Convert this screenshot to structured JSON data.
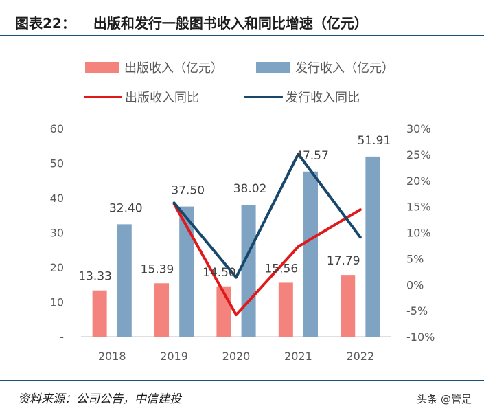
{
  "header": {
    "figure_no": "图表22：",
    "title": "出版和发行一般图书收入和同比增速（亿元）"
  },
  "chart_data": {
    "type": "bar",
    "categories": [
      "2018",
      "2019",
      "2020",
      "2021",
      "2022"
    ],
    "series": [
      {
        "name": "出版收入（亿元）",
        "kind": "bar",
        "axis": "left",
        "color": "#f4837d",
        "values": [
          13.33,
          15.39,
          14.5,
          15.56,
          17.79
        ],
        "labels": [
          "13.33",
          "15.39",
          "14.50",
          "15.56",
          "17.79"
        ]
      },
      {
        "name": "发行收入（亿元）",
        "kind": "bar",
        "axis": "left",
        "color": "#7fa3c3",
        "values": [
          32.4,
          37.5,
          38.02,
          47.57,
          51.91
        ],
        "labels": [
          "32.40",
          "37.50",
          "38.02",
          "47.57",
          "51.91"
        ]
      },
      {
        "name": "出版收入同比",
        "kind": "line",
        "axis": "right",
        "color": "#e0191b",
        "values": [
          null,
          15.5,
          -5.8,
          7.3,
          14.4
        ]
      },
      {
        "name": "发行收入同比",
        "kind": "line",
        "axis": "right",
        "color": "#17476b",
        "values": [
          null,
          15.7,
          1.4,
          25.1,
          9.1
        ]
      }
    ],
    "y_left": {
      "min": 0,
      "max": 60,
      "ticks": [
        "-",
        "10",
        "20",
        "30",
        "40",
        "50",
        "60"
      ]
    },
    "y_right": {
      "min": -10,
      "max": 30,
      "ticks": [
        "-10%",
        "-5%",
        "0%",
        "5%",
        "10%",
        "15%",
        "20%",
        "25%",
        "30%"
      ]
    },
    "legend_position": "top",
    "grid": false
  },
  "footer": {
    "source": "资料来源：公司公告，中信建投",
    "watermark": "头条 @管是"
  }
}
